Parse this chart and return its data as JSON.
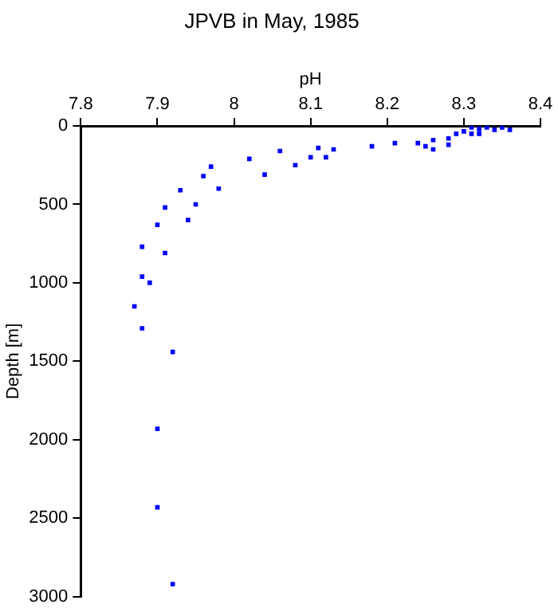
{
  "chart_data": {
    "type": "scatter",
    "title": "JPVB in May, 1985",
    "xlabel": "pH",
    "ylabel": "Depth [m]",
    "xlim": [
      7.8,
      8.4
    ],
    "xticks": [
      7.8,
      7.9,
      8,
      8.1,
      8.2,
      8.3,
      8.4
    ],
    "ylim": [
      3000,
      0
    ],
    "yticks": [
      0,
      500,
      1000,
      1500,
      2000,
      2500,
      3000
    ],
    "grid": false,
    "legend": false,
    "marker": "square",
    "series": [
      {
        "color": "#0000ff",
        "x": [
          7.9,
          7.91,
          7.93,
          7.94,
          7.95,
          7.96,
          7.97,
          7.98,
          8.02,
          8.04,
          8.06,
          8.08,
          8.1,
          8.11,
          8.12,
          8.13,
          8.18,
          8.21,
          8.24,
          8.25,
          8.26,
          8.26,
          8.28,
          8.28,
          8.29,
          8.3,
          8.31,
          8.31,
          8.32,
          8.32,
          8.33,
          8.34,
          8.35,
          8.36,
          7.88,
          7.91,
          7.88,
          7.89,
          7.87,
          7.88,
          7.92,
          7.9,
          7.9,
          7.92
        ],
        "values": [
          630,
          520,
          410,
          600,
          500,
          320,
          260,
          400,
          210,
          310,
          160,
          250,
          200,
          140,
          200,
          150,
          130,
          110,
          110,
          130,
          90,
          150,
          80,
          120,
          50,
          35,
          10,
          50,
          50,
          20,
          10,
          25,
          10,
          25,
          770,
          810,
          960,
          1000,
          1150,
          1290,
          1440,
          1930,
          2430,
          2920
        ]
      }
    ]
  }
}
